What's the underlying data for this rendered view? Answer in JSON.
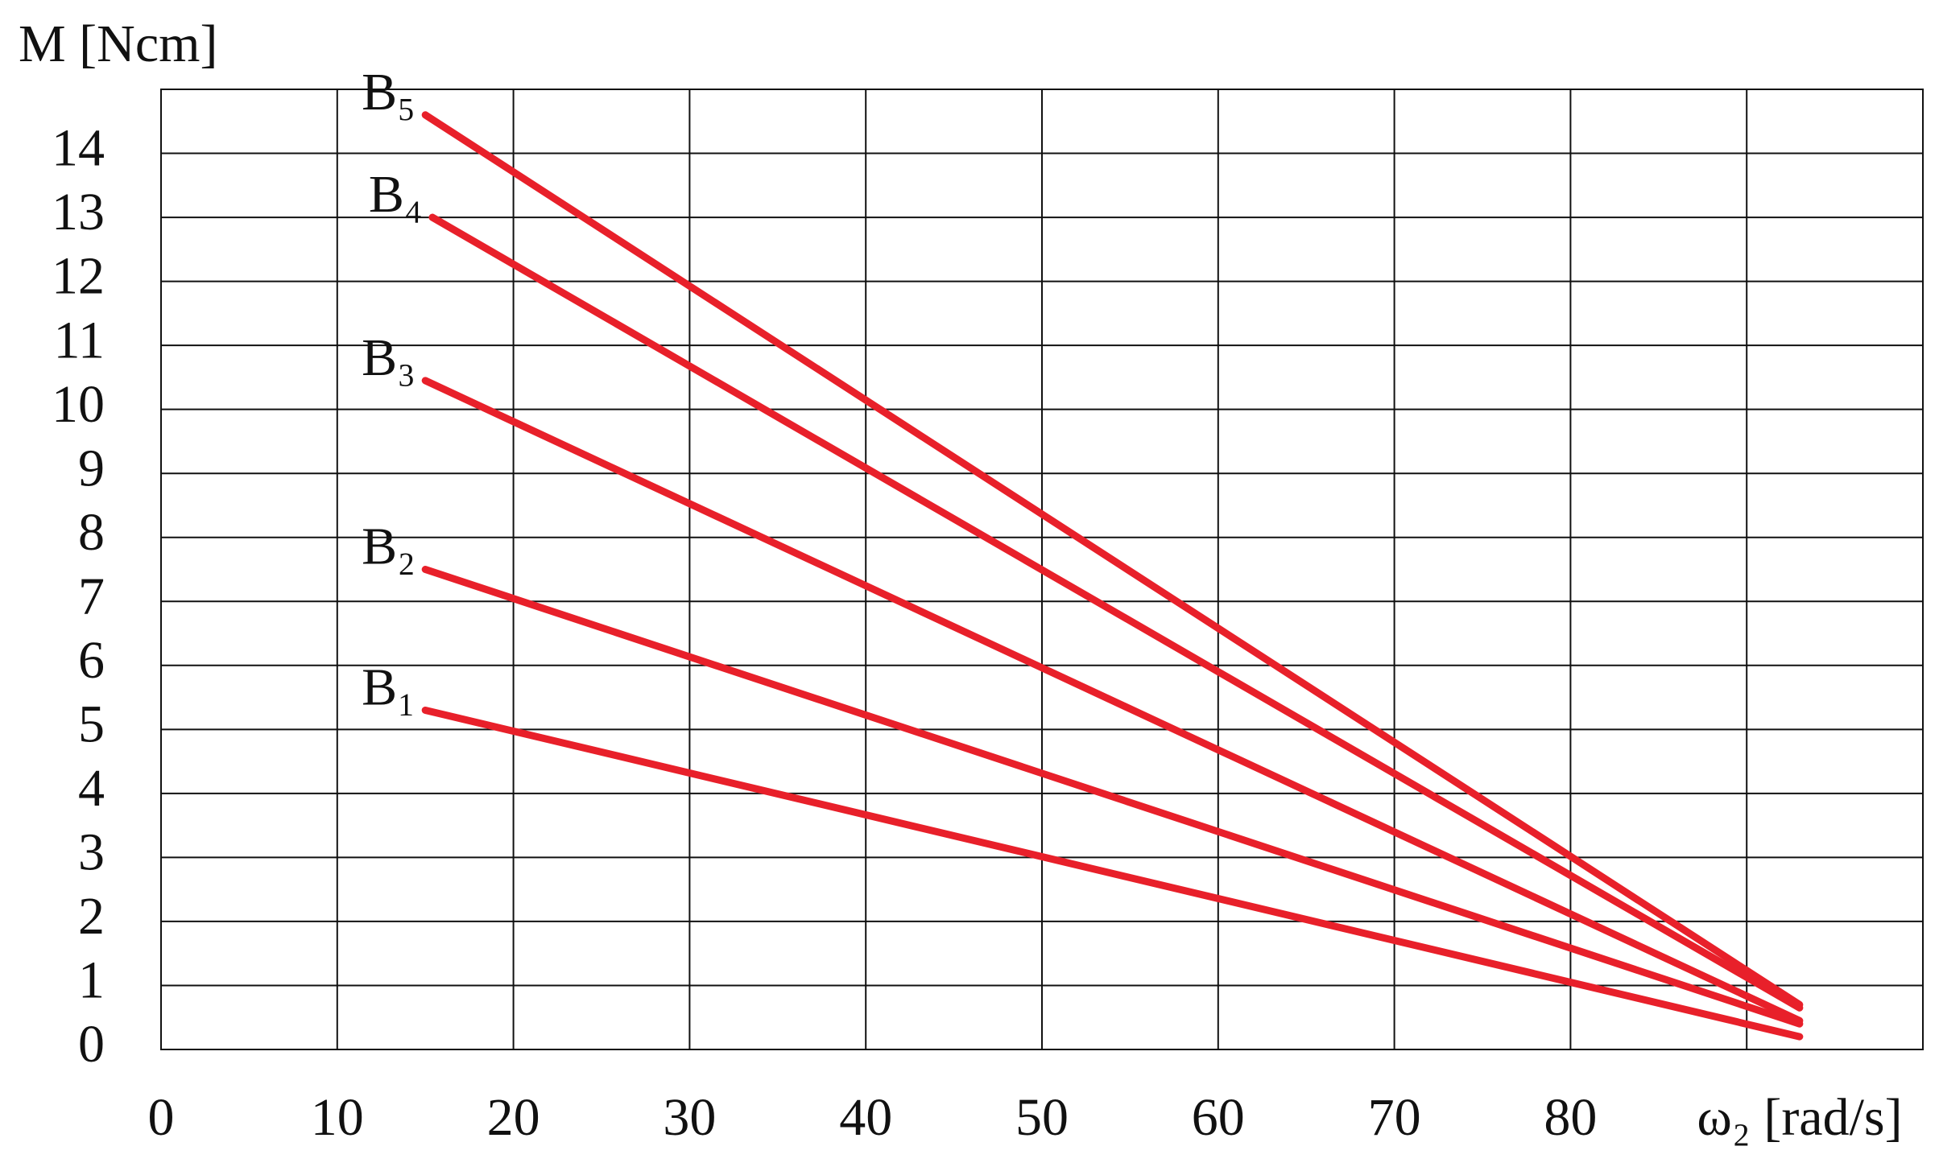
{
  "chart_data": {
    "type": "line",
    "y_label": "M [Ncm]",
    "x_label": "ω₂ [rad/s]",
    "xlim": [
      0,
      100
    ],
    "ylim": [
      0,
      15
    ],
    "xticks": [
      0,
      10,
      20,
      30,
      40,
      50,
      60,
      70,
      80
    ],
    "x_gridlines": [
      10,
      20,
      30,
      40,
      50,
      60,
      70,
      80,
      90
    ],
    "yticks": [
      0,
      1,
      2,
      3,
      4,
      5,
      6,
      7,
      8,
      9,
      10,
      11,
      12,
      13,
      14
    ],
    "grid": true,
    "series": [
      {
        "name": "B₅",
        "color": "#e8202a",
        "x": [
          15,
          93
        ],
        "values": [
          14.6,
          0.7
        ]
      },
      {
        "name": "B₄",
        "color": "#e8202a",
        "x": [
          15.4,
          93
        ],
        "values": [
          13.0,
          0.65
        ]
      },
      {
        "name": "B₃",
        "color": "#e8202a",
        "x": [
          15,
          93
        ],
        "values": [
          10.45,
          0.45
        ]
      },
      {
        "name": "B₂",
        "color": "#e8202a",
        "x": [
          15,
          93
        ],
        "values": [
          7.5,
          0.4
        ]
      },
      {
        "name": "B₁",
        "color": "#e8202a",
        "x": [
          15,
          93
        ],
        "values": [
          5.3,
          0.2
        ]
      }
    ]
  }
}
